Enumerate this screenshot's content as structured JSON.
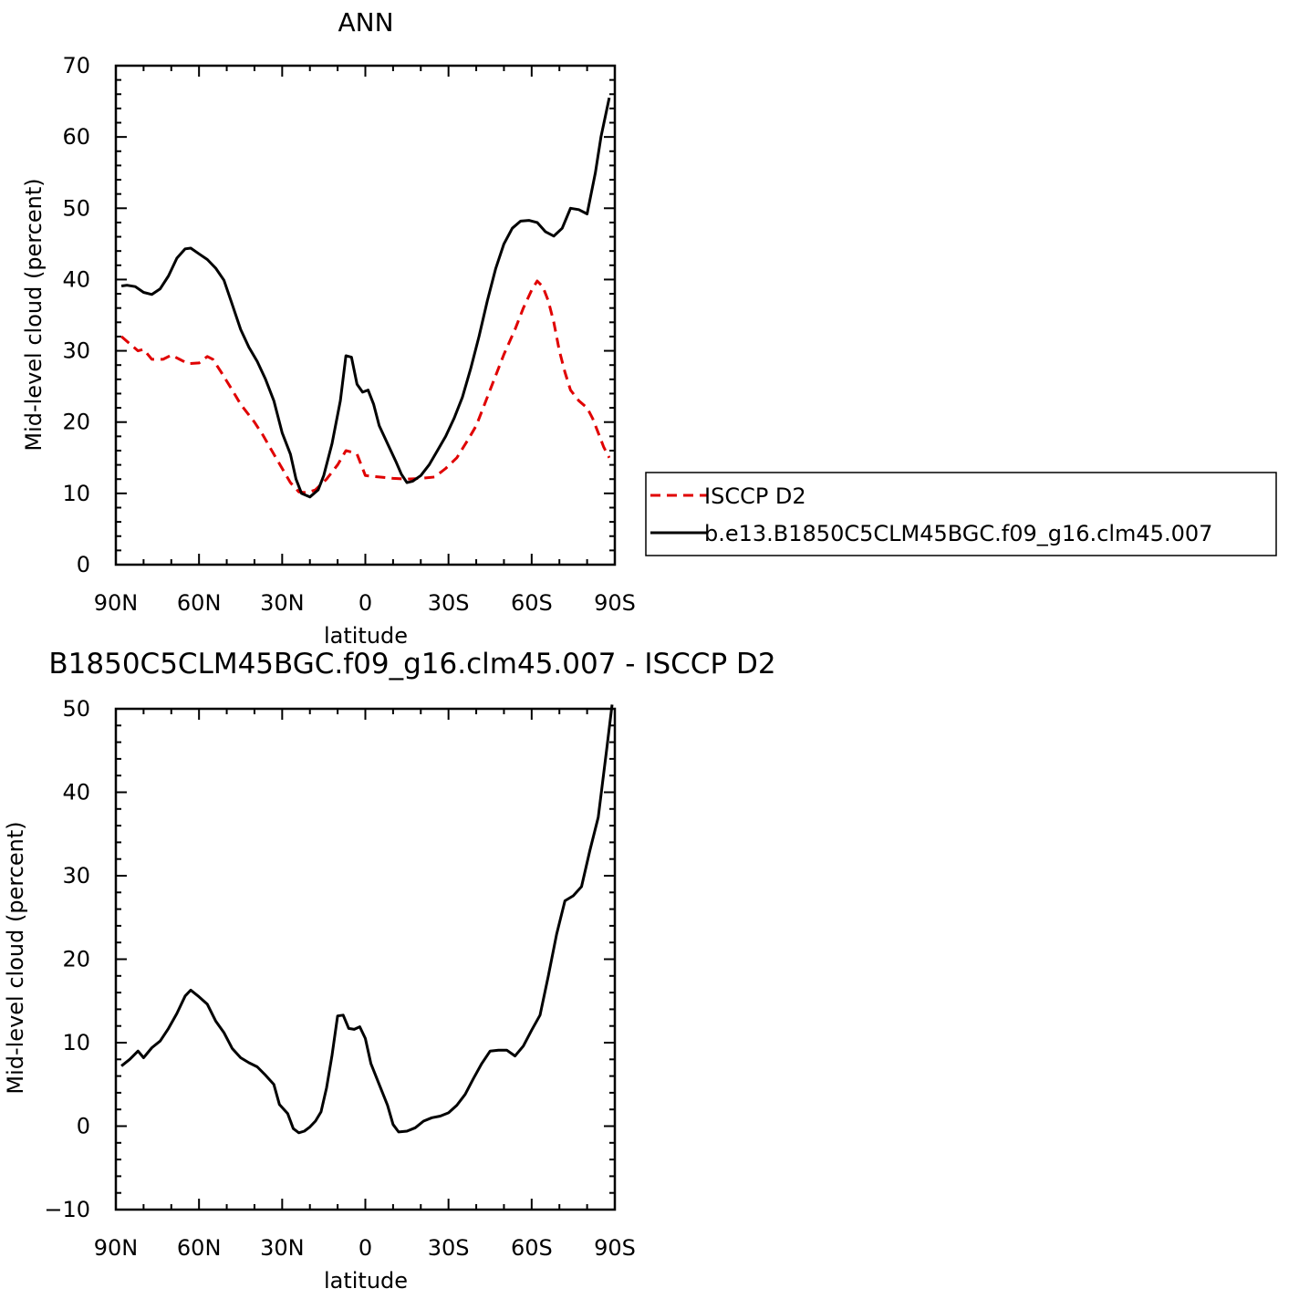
{
  "chart_data": [
    {
      "type": "line",
      "title": "ANN",
      "xlabel": "latitude",
      "ylabel": "Mid-level cloud (percent)",
      "xlim": [
        90,
        -90
      ],
      "ylim": [
        0,
        70
      ],
      "yticks": [
        0,
        10,
        20,
        30,
        40,
        50,
        60,
        70
      ],
      "xticks": [
        {
          "value": 90,
          "label": "90N"
        },
        {
          "value": 60,
          "label": "60N"
        },
        {
          "value": 30,
          "label": "30N"
        },
        {
          "value": 0,
          "label": "0"
        },
        {
          "value": -30,
          "label": "30S"
        },
        {
          "value": -60,
          "label": "60S"
        },
        {
          "value": -90,
          "label": "90S"
        }
      ],
      "legend": {
        "placement": "right-outside"
      },
      "series": [
        {
          "name": "ISCCP D2",
          "color": "#e00000",
          "dash": "dashed",
          "points": [
            [
              88,
              32
            ],
            [
              85,
              31
            ],
            [
              82,
              30
            ],
            [
              80,
              30.2
            ],
            [
              77,
              28.8
            ],
            [
              73,
              28.8
            ],
            [
              70,
              29.4
            ],
            [
              67,
              28.8
            ],
            [
              64,
              28.2
            ],
            [
              60,
              28.3
            ],
            [
              57,
              29.2
            ],
            [
              55,
              28.8
            ],
            [
              52,
              27
            ],
            [
              48,
              24.5
            ],
            [
              45,
              22.5
            ],
            [
              40,
              20
            ],
            [
              37,
              18.2
            ],
            [
              33,
              15.5
            ],
            [
              30,
              13.5
            ],
            [
              27,
              11.5
            ],
            [
              24,
              10.2
            ],
            [
              21,
              10.1
            ],
            [
              18,
              10.5
            ],
            [
              14,
              12
            ],
            [
              10,
              14
            ],
            [
              7,
              16
            ],
            [
              5,
              15.8
            ],
            [
              3,
              15.5
            ],
            [
              1,
              13.5
            ],
            [
              0,
              12.5
            ],
            [
              -5,
              12.3
            ],
            [
              -10,
              12.1
            ],
            [
              -15,
              12
            ],
            [
              -20,
              12.1
            ],
            [
              -25,
              12.3
            ],
            [
              -29,
              13.5
            ],
            [
              -33,
              15
            ],
            [
              -37,
              17.5
            ],
            [
              -40,
              19.5
            ],
            [
              -43,
              22.5
            ],
            [
              -46,
              25.5
            ],
            [
              -50,
              29.5
            ],
            [
              -54,
              33
            ],
            [
              -57,
              36
            ],
            [
              -60,
              38.5
            ],
            [
              -62,
              39.8
            ],
            [
              -64,
              39
            ],
            [
              -66,
              37
            ],
            [
              -68,
              34
            ],
            [
              -70,
              30
            ],
            [
              -72,
              27
            ],
            [
              -74,
              24.5
            ],
            [
              -77,
              23
            ],
            [
              -80,
              22
            ],
            [
              -82,
              20.5
            ],
            [
              -84,
              18.5
            ],
            [
              -86,
              16.5
            ],
            [
              -88,
              15
            ]
          ]
        },
        {
          "name": "b.e13.B1850C5CLM45BGC.f09_g16.clm45.007",
          "color": "#000000",
          "dash": "solid",
          "points": [
            [
              88,
              39.1
            ],
            [
              86,
              39.2
            ],
            [
              83,
              39
            ],
            [
              80,
              38.2
            ],
            [
              77,
              37.9
            ],
            [
              74,
              38.7
            ],
            [
              71,
              40.5
            ],
            [
              68,
              43
            ],
            [
              65,
              44.3
            ],
            [
              63,
              44.4
            ],
            [
              60,
              43.6
            ],
            [
              57,
              42.8
            ],
            [
              54,
              41.6
            ],
            [
              51,
              39.9
            ],
            [
              48,
              36.5
            ],
            [
              45,
              33
            ],
            [
              42,
              30.5
            ],
            [
              39,
              28.5
            ],
            [
              36,
              26
            ],
            [
              33,
              23
            ],
            [
              30,
              18.5
            ],
            [
              27,
              15.5
            ],
            [
              25,
              12
            ],
            [
              23,
              10
            ],
            [
              20,
              9.5
            ],
            [
              17,
              10.5
            ],
            [
              15,
              12.5
            ],
            [
              12,
              17
            ],
            [
              9,
              23
            ],
            [
              7,
              29.3
            ],
            [
              5,
              29.1
            ],
            [
              3,
              25.3
            ],
            [
              1,
              24.2
            ],
            [
              -1,
              24.5
            ],
            [
              -3,
              22.5
            ],
            [
              -5,
              19.5
            ],
            [
              -8,
              17
            ],
            [
              -11,
              14.5
            ],
            [
              -13,
              12.7
            ],
            [
              -15,
              11.5
            ],
            [
              -17,
              11.7
            ],
            [
              -20,
              12.5
            ],
            [
              -23,
              14
            ],
            [
              -26,
              16
            ],
            [
              -29,
              18
            ],
            [
              -32,
              20.5
            ],
            [
              -35,
              23.5
            ],
            [
              -38,
              27.5
            ],
            [
              -41,
              32
            ],
            [
              -44,
              37
            ],
            [
              -47,
              41.5
            ],
            [
              -50,
              45
            ],
            [
              -53,
              47.2
            ],
            [
              -56,
              48.2
            ],
            [
              -59,
              48.3
            ],
            [
              -62,
              48
            ],
            [
              -65,
              46.7
            ],
            [
              -68,
              46.1
            ],
            [
              -71,
              47.2
            ],
            [
              -74,
              50
            ],
            [
              -77,
              49.8
            ],
            [
              -80,
              49.2
            ],
            [
              -83,
              55
            ],
            [
              -85,
              60
            ],
            [
              -88,
              65.5
            ]
          ]
        }
      ]
    },
    {
      "type": "line",
      "title": "B1850C5CLM45BGC.f09_g16.clm45.007 - ISCCP D2",
      "xlabel": "latitude",
      "ylabel": "Mid-level cloud (percent)",
      "xlim": [
        90,
        -90
      ],
      "ylim": [
        -10,
        50
      ],
      "yticks": [
        -10,
        0,
        10,
        20,
        30,
        40,
        50
      ],
      "xticks": [
        {
          "value": 90,
          "label": "90N"
        },
        {
          "value": 60,
          "label": "60N"
        },
        {
          "value": 30,
          "label": "30N"
        },
        {
          "value": 0,
          "label": "0"
        },
        {
          "value": -30,
          "label": "30S"
        },
        {
          "value": -60,
          "label": "60S"
        },
        {
          "value": -90,
          "label": "90S"
        }
      ],
      "series": [
        {
          "color": "#000000",
          "dash": "solid",
          "points": [
            [
              88,
              7.2
            ],
            [
              85,
              8
            ],
            [
              82,
              9
            ],
            [
              80,
              8.2
            ],
            [
              77,
              9.4
            ],
            [
              74,
              10.2
            ],
            [
              71,
              11.7
            ],
            [
              68,
              13.5
            ],
            [
              65,
              15.6
            ],
            [
              63,
              16.3
            ],
            [
              60,
              15.5
            ],
            [
              57,
              14.6
            ],
            [
              54,
              12.6
            ],
            [
              51,
              11.2
            ],
            [
              48,
              9.3
            ],
            [
              45,
              8.2
            ],
            [
              42,
              7.6
            ],
            [
              39,
              7.1
            ],
            [
              36,
              6.1
            ],
            [
              33,
              5
            ],
            [
              31,
              2.6
            ],
            [
              28,
              1.5
            ],
            [
              26,
              -0.3
            ],
            [
              24,
              -0.8
            ],
            [
              22,
              -0.6
            ],
            [
              20,
              -0.1
            ],
            [
              18,
              0.6
            ],
            [
              16,
              1.7
            ],
            [
              14,
              4.6
            ],
            [
              12,
              8.5
            ],
            [
              10,
              13.2
            ],
            [
              8,
              13.3
            ],
            [
              6,
              11.7
            ],
            [
              4,
              11.6
            ],
            [
              2,
              11.9
            ],
            [
              0,
              10.5
            ],
            [
              -2,
              7.5
            ],
            [
              -5,
              5
            ],
            [
              -8,
              2.5
            ],
            [
              -10,
              0.2
            ],
            [
              -12,
              -0.7
            ],
            [
              -15,
              -0.6
            ],
            [
              -18,
              -0.2
            ],
            [
              -21,
              0.6
            ],
            [
              -24,
              1
            ],
            [
              -27,
              1.2
            ],
            [
              -30,
              1.6
            ],
            [
              -33,
              2.5
            ],
            [
              -36,
              3.8
            ],
            [
              -39,
              5.7
            ],
            [
              -42,
              7.5
            ],
            [
              -45,
              9
            ],
            [
              -48,
              9.1
            ],
            [
              -51,
              9.1
            ],
            [
              -54,
              8.4
            ],
            [
              -57,
              9.6
            ],
            [
              -60,
              11.5
            ],
            [
              -63,
              13.3
            ],
            [
              -66,
              18
            ],
            [
              -69,
              23
            ],
            [
              -72,
              27
            ],
            [
              -75,
              27.6
            ],
            [
              -78,
              28.7
            ],
            [
              -81,
              33
            ],
            [
              -84,
              37
            ],
            [
              -87,
              45
            ],
            [
              -89,
              50.5
            ]
          ]
        }
      ]
    }
  ]
}
